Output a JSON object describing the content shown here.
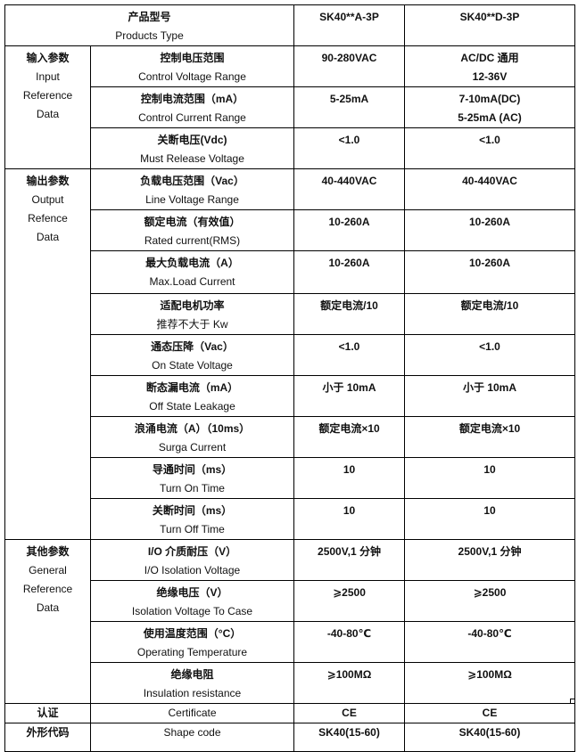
{
  "header": {
    "label_cn": "产品型号",
    "label_en": "Products Type",
    "models": [
      "SK40**A-3P",
      "SK40**D-3P"
    ]
  },
  "groups": [
    {
      "cn": "输入参数",
      "en": [
        "Input",
        "Reference",
        "Data"
      ],
      "rows": [
        {
          "cn": "控制电压范围",
          "en": "Control Voltage Range",
          "a": [
            "90-280VAC"
          ],
          "d": [
            "AC/DC 通用",
            "12-36V"
          ]
        },
        {
          "cn": "控制电流范围（mA）",
          "en": "Control Current Range",
          "a": [
            "5-25mA"
          ],
          "d": [
            "7-10mA(DC)",
            "5-25mA (AC)"
          ]
        },
        {
          "cn": "关断电压(Vdc)",
          "en": "Must Release Voltage",
          "a": [
            "<1.0"
          ],
          "d": [
            "<1.0"
          ]
        }
      ]
    },
    {
      "cn": "输出参数",
      "en": [
        "Output",
        "Refence",
        "Data"
      ],
      "rows": [
        {
          "cn": "负载电压范围（Vac）",
          "en": "Line Voltage Range",
          "a": [
            "40-440VAC"
          ],
          "d": [
            "40-440VAC"
          ]
        },
        {
          "cn": "额定电流（有效值）",
          "en": "Rated current(RMS)",
          "a": [
            "10-260A"
          ],
          "d": [
            "10-260A"
          ]
        },
        {
          "cn": "最大负载电流（A）",
          "en": "Max.Load Current",
          "a": [
            "10-260A"
          ],
          "d": [
            "10-260A"
          ]
        },
        {
          "cn": "适配电机功率",
          "en": "推荐不大于  Kw",
          "a": [
            "额定电流/10"
          ],
          "d": [
            "额定电流/10"
          ]
        },
        {
          "cn": "通态压降（Vac）",
          "en": "On State Voltage",
          "a": [
            "<1.0"
          ],
          "d": [
            "<1.0"
          ]
        },
        {
          "cn": "断态漏电流（mA）",
          "en": "Off State Leakage",
          "a": [
            "小于 10mA"
          ],
          "d": [
            "小于 10mA"
          ]
        },
        {
          "cn": "浪涌电流（A）（10ms）",
          "en": "Surga Current",
          "a": [
            "额定电流×10"
          ],
          "d": [
            "额定电流×10"
          ]
        },
        {
          "cn": "导通时间（ms）",
          "en": "Turn On Time",
          "a": [
            "10"
          ],
          "d": [
            "10"
          ]
        },
        {
          "cn": "关断时间（ms）",
          "en": "Turn Off Time",
          "a": [
            "10"
          ],
          "d": [
            "10"
          ]
        }
      ]
    },
    {
      "cn": "其他参数",
      "en": [
        "General",
        "Reference",
        "Data"
      ],
      "rows": [
        {
          "cn": "I/O 介质耐压（V）",
          "en": "I/O Isolation Voltage",
          "a": [
            "2500V,1 分钟"
          ],
          "d": [
            "2500V,1 分钟"
          ]
        },
        {
          "cn": "绝缘电压（V）",
          "en": "Isolation Voltage To Case",
          "a": [
            "⩾2500"
          ],
          "d": [
            "⩾2500"
          ]
        },
        {
          "cn": "使用温度范围（°C）",
          "en": "Operating Temperature",
          "a": [
            "-40-80℃"
          ],
          "d": [
            "-40-80℃"
          ]
        },
        {
          "cn": "绝缘电阻",
          "en": "Insulation resistance",
          "a": [
            "⩾100MΩ"
          ],
          "d": [
            "⩾100MΩ"
          ]
        }
      ]
    }
  ],
  "single_rows": [
    {
      "cn": "认证",
      "en": "Certificate",
      "a": "CE",
      "d": "CE"
    },
    {
      "cn": "外形代码",
      "en": "Shape code",
      "a": "SK40(15-60)",
      "d": "SK40(15-60)"
    }
  ]
}
